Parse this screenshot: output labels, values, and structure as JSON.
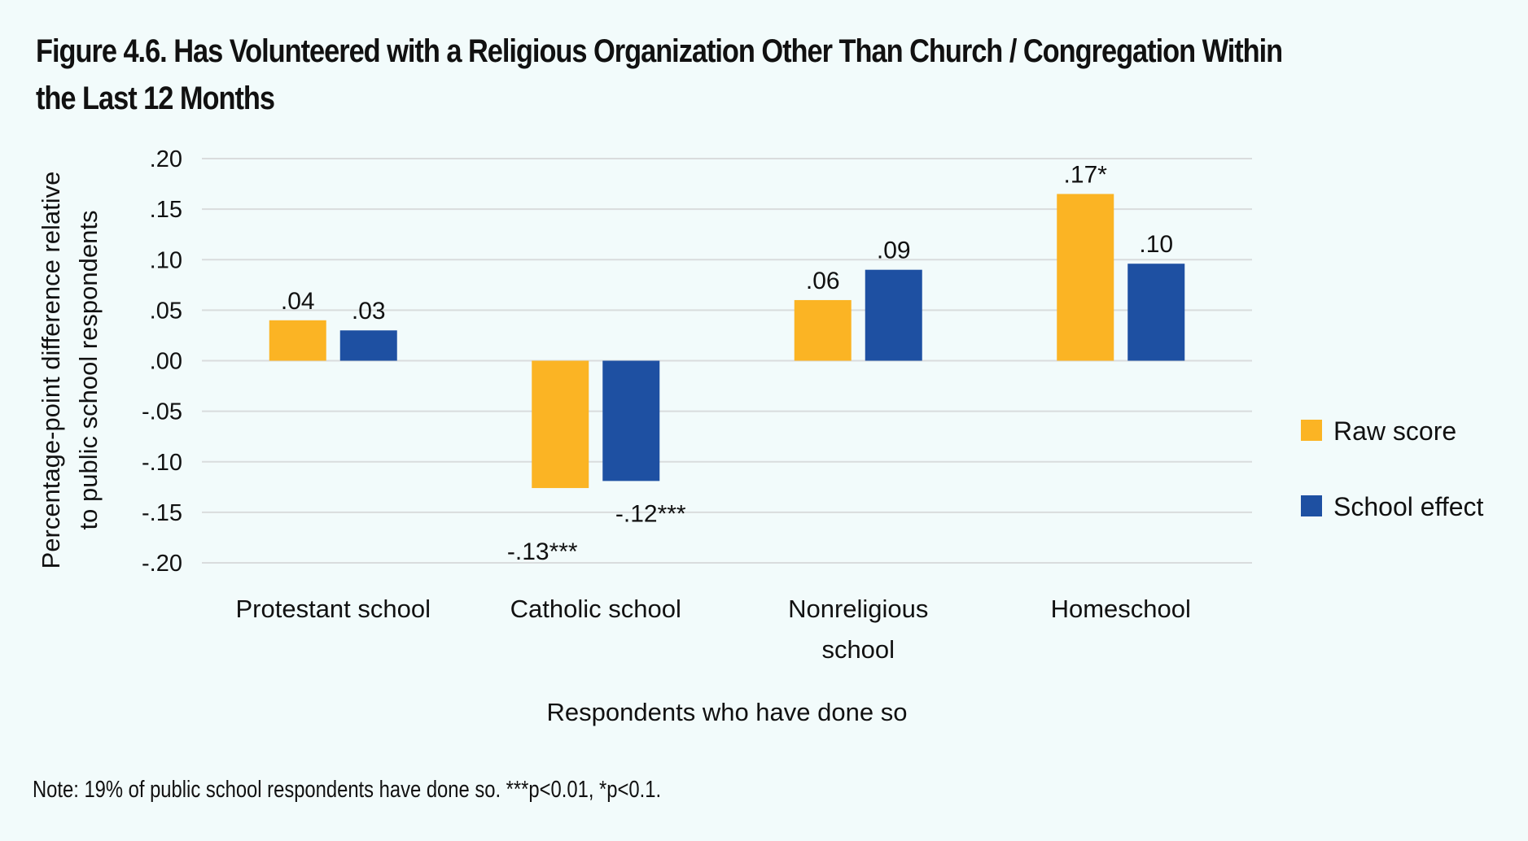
{
  "chart_data": {
    "type": "bar",
    "title": "Figure 4.6. Has Volunteered with a Religious Organization Other Than Church / Congregation Within the Last 12 Months",
    "xlabel": "Respondents who have done so",
    "ylabel": [
      "Percentage-point difference relative",
      "to public school respondents"
    ],
    "ylim": [
      -0.2,
      0.2
    ],
    "yticks": [
      0.2,
      0.15,
      0.1,
      0.05,
      0.0,
      -0.05,
      -0.1,
      -0.15,
      -0.2
    ],
    "ytick_labels": [
      ".20",
      ".15",
      ".10",
      ".05",
      ".00",
      "-.05",
      "-.10",
      "-.15",
      "-.20"
    ],
    "grid": true,
    "legend_position": "right",
    "categories": [
      [
        "Protestant school"
      ],
      [
        "Catholic school"
      ],
      [
        "Nonreligious",
        "school"
      ],
      [
        "Homeschool"
      ]
    ],
    "series": [
      {
        "name": "Raw score",
        "color": "#fbb424",
        "values": [
          0.04,
          -0.126,
          0.06,
          0.165
        ],
        "labels": [
          ".04",
          "-.13***",
          ".06",
          ".17*"
        ]
      },
      {
        "name": "School effect",
        "color": "#1e50a2",
        "values": [
          0.03,
          -0.119,
          0.09,
          0.096
        ],
        "labels": [
          ".03",
          "-.12***",
          ".09",
          ".10"
        ]
      }
    ]
  },
  "note": "Note: 19% of public school respondents have done so. ***p<0.01, *p<0.1.",
  "colors": {
    "background": "#f2fbfb",
    "gridline": "#d9dcdd"
  }
}
